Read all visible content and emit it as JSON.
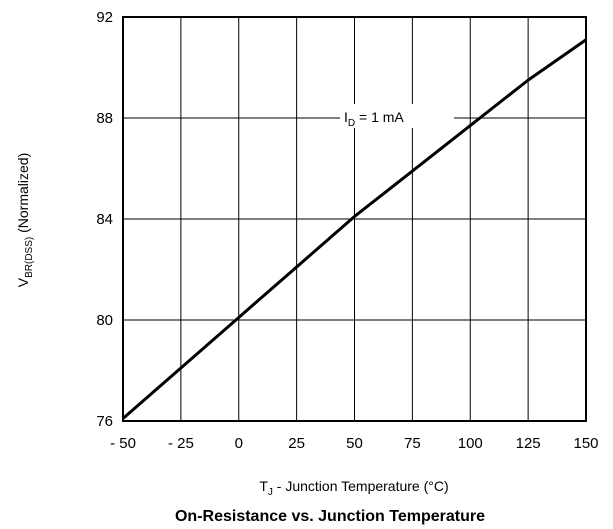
{
  "chart_data": {
    "type": "line",
    "title": "On-Resistance vs. Junction Temperature",
    "xlabel": {
      "main": "T",
      "sub": "J",
      "rest": " - Junction Temperature (°C)"
    },
    "ylabel": {
      "main": "V",
      "sub": "BR(DSS)",
      "rest": " (Normalized)"
    },
    "xlim": [
      -50,
      150
    ],
    "ylim": [
      76,
      92
    ],
    "x_ticks": [
      -50,
      -25,
      0,
      25,
      50,
      75,
      100,
      125,
      150
    ],
    "x_tick_labels": [
      "- 50",
      "- 25",
      "0",
      "25",
      "50",
      "75",
      "100",
      "125",
      "150"
    ],
    "y_ticks": [
      76,
      80,
      84,
      88,
      92
    ],
    "y_tick_labels": [
      "76",
      "80",
      "84",
      "88",
      "92"
    ],
    "grid": true,
    "annotation": {
      "main": "I",
      "sub": "D",
      "rest": " = 1 mA"
    },
    "series": [
      {
        "x": [
          -50,
          -25,
          0,
          25,
          50,
          75,
          100,
          125,
          150
        ],
        "y": [
          76.1,
          78.1,
          80.1,
          82.1,
          84.1,
          85.9,
          87.7,
          89.5,
          91.1
        ]
      }
    ]
  }
}
